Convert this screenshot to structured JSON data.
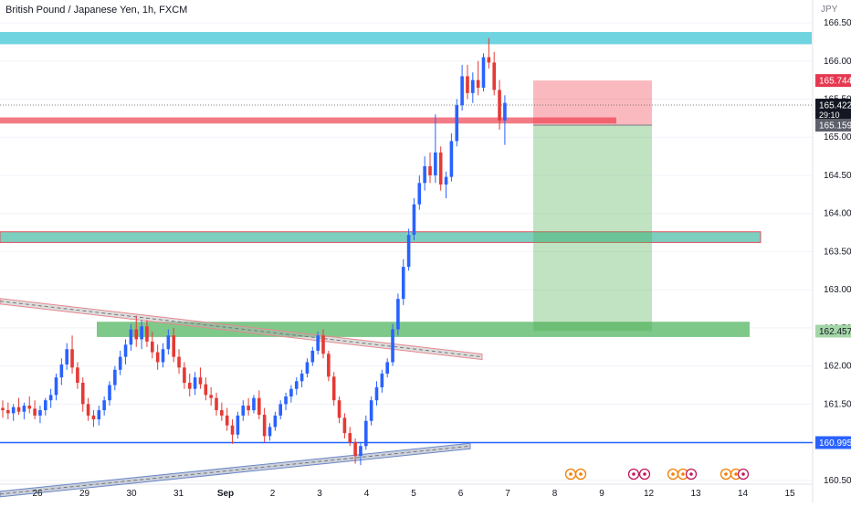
{
  "title": "British Pound / Japanese Yen, 1h, FXCM",
  "currency": "JPY",
  "chart_data": {
    "type": "candlestick",
    "x_ticks": [
      "26",
      "29",
      "30",
      "31",
      "Sep",
      "2",
      "3",
      "4",
      "5",
      "6",
      "7",
      "8",
      "9",
      "12",
      "13",
      "14",
      "15"
    ],
    "y_ticks": [
      "160.500",
      "161.000",
      "161.500",
      "162.000",
      "162.500",
      "163.000",
      "163.500",
      "164.000",
      "164.500",
      "165.000",
      "165.500",
      "166.000",
      "166.500"
    ],
    "ylim": [
      160.45,
      166.8
    ],
    "current_price": "165.422",
    "countdown": "29:10",
    "position": {
      "stop": "165.744",
      "entry": "165.159",
      "target": "162.457"
    },
    "support_level": "160.995",
    "zones": [
      {
        "from": 166.22,
        "to": 166.38,
        "color": "#6fd3e0"
      },
      {
        "from": 165.18,
        "to": 165.26,
        "color": "#f27b86"
      },
      {
        "from": 163.62,
        "to": 163.76,
        "color": "#7ccfbf"
      },
      {
        "from": 162.38,
        "to": 162.58,
        "color": "#7ec88a"
      }
    ],
    "trendlines": [
      {
        "from": [
          0,
          162.85
        ],
        "to": [
          94,
          162.12
        ],
        "color": "#e8888f"
      },
      {
        "from": [
          0,
          160.32
        ],
        "to": [
          94,
          160.95
        ],
        "color": "#6b88c7"
      }
    ],
    "candles": [
      [
        161.45,
        161.55,
        161.32,
        161.42
      ],
      [
        161.42,
        161.52,
        161.3,
        161.38
      ],
      [
        161.38,
        161.5,
        161.28,
        161.46
      ],
      [
        161.46,
        161.58,
        161.36,
        161.4
      ],
      [
        161.4,
        161.52,
        161.3,
        161.48
      ],
      [
        161.48,
        161.6,
        161.38,
        161.44
      ],
      [
        161.44,
        161.55,
        161.3,
        161.35
      ],
      [
        161.35,
        161.48,
        161.25,
        161.42
      ],
      [
        161.42,
        161.58,
        161.35,
        161.55
      ],
      [
        161.55,
        161.7,
        161.45,
        161.62
      ],
      [
        161.62,
        161.9,
        161.55,
        161.85
      ],
      [
        161.85,
        162.1,
        161.75,
        162.02
      ],
      [
        162.02,
        162.3,
        161.95,
        162.22
      ],
      [
        162.22,
        162.4,
        161.9,
        161.98
      ],
      [
        161.98,
        162.05,
        161.7,
        161.78
      ],
      [
        161.78,
        161.85,
        161.4,
        161.5
      ],
      [
        161.5,
        161.58,
        161.28,
        161.35
      ],
      [
        161.35,
        161.42,
        161.2,
        161.3
      ],
      [
        161.3,
        161.48,
        161.22,
        161.42
      ],
      [
        161.42,
        161.6,
        161.35,
        161.55
      ],
      [
        161.55,
        161.8,
        161.48,
        161.75
      ],
      [
        161.75,
        162.0,
        161.68,
        161.95
      ],
      [
        161.95,
        162.2,
        161.88,
        162.12
      ],
      [
        162.12,
        162.35,
        162.02,
        162.28
      ],
      [
        162.28,
        162.55,
        162.2,
        162.48
      ],
      [
        162.48,
        162.66,
        162.25,
        162.35
      ],
      [
        162.35,
        162.6,
        162.22,
        162.52
      ],
      [
        162.52,
        162.6,
        162.25,
        162.32
      ],
      [
        162.32,
        162.45,
        162.1,
        162.18
      ],
      [
        162.18,
        162.28,
        161.95,
        162.05
      ],
      [
        162.05,
        162.3,
        161.98,
        162.22
      ],
      [
        162.22,
        162.48,
        162.15,
        162.4
      ],
      [
        162.4,
        162.5,
        162.05,
        162.12
      ],
      [
        162.12,
        162.22,
        161.9,
        161.98
      ],
      [
        161.98,
        162.05,
        161.7,
        161.78
      ],
      [
        161.78,
        161.9,
        161.6,
        161.7
      ],
      [
        161.7,
        161.92,
        161.62,
        161.85
      ],
      [
        161.85,
        161.98,
        161.7,
        161.76
      ],
      [
        161.76,
        161.85,
        161.55,
        161.62
      ],
      [
        161.62,
        161.72,
        161.48,
        161.58
      ],
      [
        161.58,
        161.65,
        161.35,
        161.42
      ],
      [
        161.42,
        161.52,
        161.28,
        161.35
      ],
      [
        161.35,
        161.45,
        161.15,
        161.22
      ],
      [
        161.22,
        161.3,
        160.98,
        161.1
      ],
      [
        161.1,
        161.4,
        161.05,
        161.35
      ],
      [
        161.35,
        161.55,
        161.28,
        161.48
      ],
      [
        161.48,
        161.58,
        161.35,
        161.42
      ],
      [
        161.42,
        161.62,
        161.38,
        161.58
      ],
      [
        161.58,
        161.68,
        161.3,
        161.36
      ],
      [
        161.36,
        161.45,
        161.0,
        161.08
      ],
      [
        161.08,
        161.25,
        161.02,
        161.2
      ],
      [
        161.2,
        161.4,
        161.15,
        161.35
      ],
      [
        161.35,
        161.55,
        161.3,
        161.5
      ],
      [
        161.5,
        161.65,
        161.42,
        161.6
      ],
      [
        161.6,
        161.75,
        161.52,
        161.7
      ],
      [
        161.7,
        161.85,
        161.62,
        161.8
      ],
      [
        161.8,
        161.95,
        161.72,
        161.9
      ],
      [
        161.9,
        162.1,
        161.85,
        162.05
      ],
      [
        162.05,
        162.25,
        162.0,
        162.2
      ],
      [
        162.2,
        162.45,
        162.15,
        162.4
      ],
      [
        162.4,
        162.48,
        162.1,
        162.16
      ],
      [
        162.16,
        162.2,
        161.8,
        161.86
      ],
      [
        161.86,
        161.92,
        161.48,
        161.55
      ],
      [
        161.55,
        161.6,
        161.25,
        161.32
      ],
      [
        161.32,
        161.38,
        161.05,
        161.12
      ],
      [
        161.12,
        161.2,
        160.95,
        161.0
      ],
      [
        161.0,
        161.05,
        160.72,
        160.82
      ],
      [
        160.82,
        161.0,
        160.7,
        160.95
      ],
      [
        160.95,
        161.35,
        160.9,
        161.28
      ],
      [
        161.28,
        161.6,
        161.22,
        161.55
      ],
      [
        161.55,
        161.8,
        161.48,
        161.72
      ],
      [
        161.72,
        161.95,
        161.65,
        161.9
      ],
      [
        161.9,
        162.1,
        161.85,
        162.05
      ],
      [
        162.05,
        162.55,
        162.0,
        162.48
      ],
      [
        162.48,
        162.95,
        162.4,
        162.88
      ],
      [
        162.88,
        163.4,
        162.8,
        163.3
      ],
      [
        163.3,
        163.8,
        163.25,
        163.72
      ],
      [
        163.72,
        164.2,
        163.65,
        164.12
      ],
      [
        164.12,
        164.5,
        164.05,
        164.4
      ],
      [
        164.4,
        164.75,
        164.3,
        164.62
      ],
      [
        164.62,
        164.8,
        164.4,
        164.5
      ],
      [
        164.5,
        165.3,
        164.4,
        164.8
      ],
      [
        164.8,
        164.88,
        164.3,
        164.38
      ],
      [
        164.38,
        164.55,
        164.2,
        164.48
      ],
      [
        164.48,
        165.05,
        164.42,
        164.95
      ],
      [
        164.95,
        165.5,
        164.88,
        165.42
      ],
      [
        165.42,
        165.95,
        165.35,
        165.8
      ],
      [
        165.8,
        165.95,
        165.5,
        165.58
      ],
      [
        165.58,
        165.85,
        165.45,
        165.75
      ],
      [
        165.75,
        166.0,
        165.55,
        165.65
      ],
      [
        165.65,
        166.1,
        165.6,
        166.05
      ],
      [
        166.05,
        166.3,
        165.9,
        165.98
      ],
      [
        165.98,
        166.12,
        165.55,
        165.62
      ],
      [
        165.62,
        165.75,
        165.1,
        165.22
      ],
      [
        165.22,
        165.55,
        164.9,
        165.45
      ]
    ]
  },
  "events": {
    "row1": [
      "⊙⊙",
      "🇬🇧🇯🇵",
      "⊙⊙🇬🇧",
      "⊙⊙🇬🇧"
    ]
  }
}
